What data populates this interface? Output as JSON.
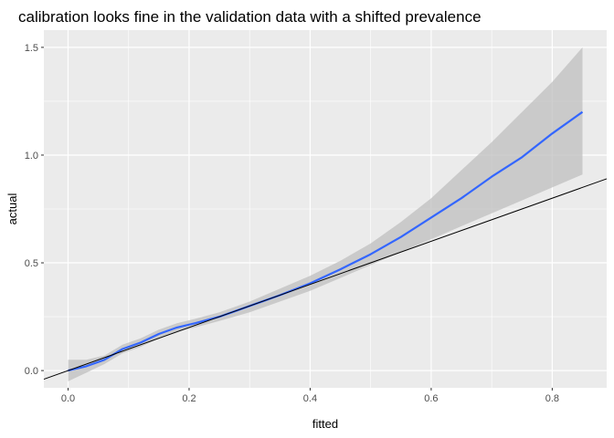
{
  "chart_data": {
    "type": "line",
    "title": "calibration looks fine in the validation data with a shifted prevalence",
    "xlabel": "fitted",
    "ylabel": "actual",
    "xlim": [
      -0.04,
      0.89
    ],
    "ylim": [
      -0.08,
      1.58
    ],
    "x_ticks": [
      0.0,
      0.2,
      0.4,
      0.6,
      0.8
    ],
    "x_tick_labels": [
      "0.0",
      "0.2",
      "0.4",
      "0.6",
      "0.8"
    ],
    "y_ticks": [
      0.0,
      0.5,
      1.0,
      1.5
    ],
    "y_tick_labels": [
      "0.0",
      "0.5",
      "1.0",
      "1.5"
    ],
    "grid": true,
    "legend": "none",
    "colors": {
      "panel_background": "#ebebeb",
      "grid": "#ffffff",
      "smooth_line": "#3366ff",
      "ribbon": "#bfbfbf",
      "reference_line": "#000000"
    },
    "series": [
      {
        "kind": "smooth",
        "x": [
          0.0,
          0.03,
          0.06,
          0.09,
          0.12,
          0.15,
          0.18,
          0.21,
          0.25,
          0.3,
          0.35,
          0.4,
          0.45,
          0.5,
          0.55,
          0.6,
          0.65,
          0.7,
          0.75,
          0.8,
          0.85
        ],
        "y": [
          0.0,
          0.02,
          0.05,
          0.1,
          0.13,
          0.17,
          0.2,
          0.22,
          0.25,
          0.3,
          0.35,
          0.405,
          0.47,
          0.54,
          0.62,
          0.71,
          0.8,
          0.9,
          0.99,
          1.1,
          1.2
        ],
        "lower": [
          -0.05,
          -0.01,
          0.03,
          0.08,
          0.11,
          0.15,
          0.18,
          0.2,
          0.23,
          0.27,
          0.32,
          0.37,
          0.43,
          0.49,
          0.55,
          0.61,
          0.67,
          0.73,
          0.79,
          0.85,
          0.91
        ],
        "upper": [
          0.05,
          0.05,
          0.07,
          0.12,
          0.15,
          0.19,
          0.22,
          0.24,
          0.27,
          0.32,
          0.38,
          0.44,
          0.51,
          0.59,
          0.69,
          0.8,
          0.93,
          1.06,
          1.2,
          1.34,
          1.5
        ]
      },
      {
        "kind": "reference",
        "x": [
          -0.04,
          0.89
        ],
        "y": [
          -0.04,
          0.89
        ]
      }
    ]
  }
}
